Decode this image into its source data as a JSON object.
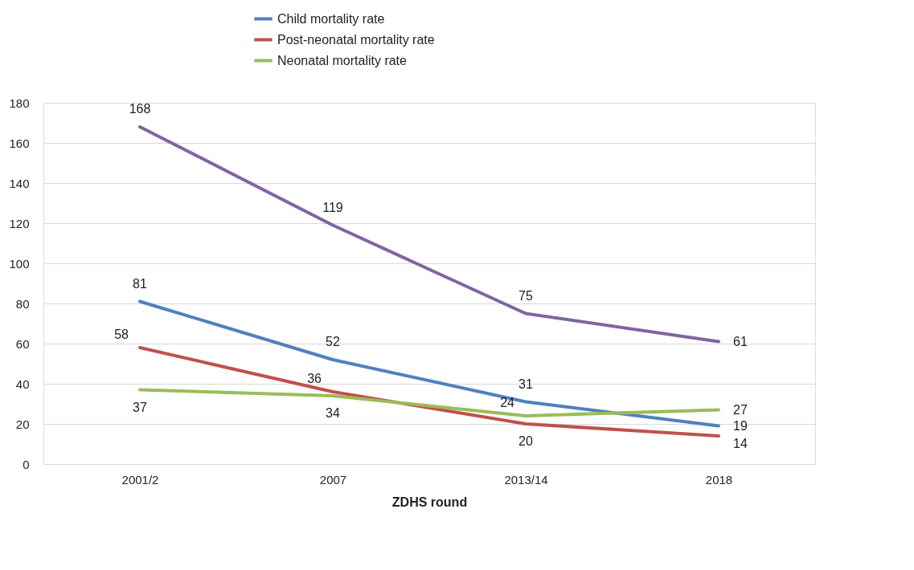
{
  "chart_data": {
    "type": "line",
    "xlabel": "ZDHS round",
    "categories": [
      "2001/2",
      "2007",
      "2013/14",
      "2018"
    ],
    "series": [
      {
        "color": "#8064a2",
        "values": [
          168,
          119,
          75,
          61
        ]
      },
      {
        "name": "Child mortality rate",
        "color": "#4f81bd",
        "values": [
          81,
          52,
          31,
          19
        ]
      },
      {
        "name": "Post-neonatal mortality rate",
        "color": "#c0504d",
        "values": [
          58,
          36,
          20,
          14
        ]
      },
      {
        "name": "Neonatal mortality rate",
        "color": "#9bbb59",
        "values": [
          37,
          34,
          24,
          27
        ]
      }
    ],
    "ylim": [
      0,
      180
    ],
    "yticks": [
      0,
      20,
      40,
      60,
      80,
      100,
      120,
      140,
      160,
      180
    ],
    "grid": "y",
    "legend": "top",
    "data_labels": true,
    "marker": "none",
    "line_style": "solid"
  }
}
